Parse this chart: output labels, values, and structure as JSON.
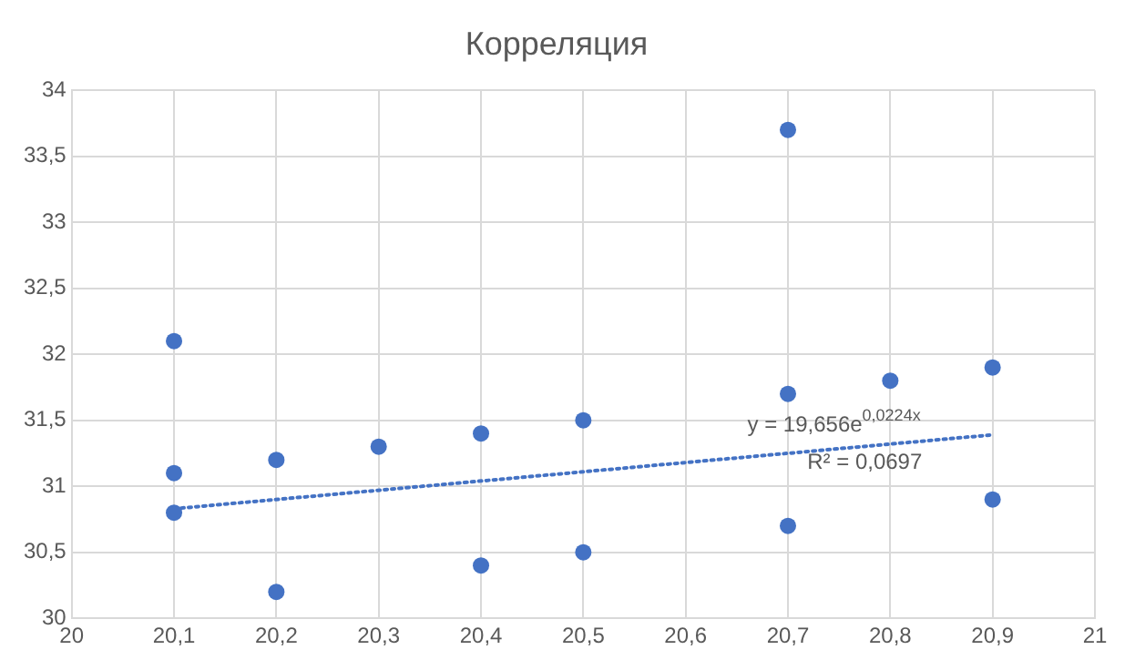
{
  "chart_data": {
    "type": "scatter",
    "title": "Корреляция",
    "series": [
      {
        "color": "#4472c4",
        "marker": "circle",
        "x": [
          20.1,
          20.1,
          20.1,
          20.2,
          20.2,
          20.3,
          20.4,
          20.4,
          20.5,
          20.5,
          20.7,
          20.7,
          20.7,
          20.8,
          20.9,
          20.9
        ],
        "values": [
          32.1,
          31.1,
          30.8,
          31.2,
          30.2,
          31.3,
          31.4,
          30.4,
          31.5,
          30.5,
          33.7,
          31.7,
          30.7,
          31.8,
          31.9,
          30.9
        ]
      },
      {
        "type": "line",
        "color": "#4472c4",
        "line_style": "dotted",
        "marker": "none",
        "x": [
          20.1,
          20.5,
          20.9
        ],
        "values": [
          30.83,
          31.11,
          31.39
        ]
      }
    ],
    "annotations": [
      "y = 19,656e$^{0,0224x}$",
      "R² = 0,0697"
    ],
    "xlim": [
      20,
      21
    ],
    "xticks": [
      20,
      {
        "value": 20.1,
        "label": "20,1"
      },
      {
        "value": 20.2,
        "label": "20,2"
      },
      {
        "value": 20.3,
        "label": "20,3"
      },
      {
        "value": 20.4,
        "label": "20,4"
      },
      {
        "value": 20.5,
        "label": "20,5"
      },
      {
        "value": 20.6,
        "label": "20,6"
      },
      {
        "value": 20.7,
        "label": "20,7"
      },
      {
        "value": 20.8,
        "label": "20,8"
      },
      {
        "value": 20.9,
        "label": "20,9"
      },
      21
    ],
    "ylim": [
      30,
      34
    ],
    "yticks": [
      30,
      {
        "value": 30.5,
        "label": "30,5"
      },
      31,
      {
        "value": 31.5,
        "label": "31,5"
      },
      32,
      {
        "value": 32.5,
        "label": "32,5"
      },
      33,
      {
        "value": 33.5,
        "label": "33,5"
      },
      34
    ],
    "grid": true,
    "legend": false
  }
}
